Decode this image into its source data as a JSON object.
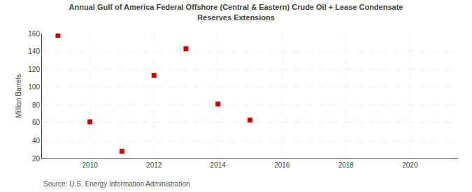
{
  "chart_data": {
    "type": "scatter",
    "title": "Annual Gulf of America Federal Offshore (Central & Eastern) Crude Oil + Lease Condensate\nReserves Extensions",
    "ylabel": "Million Barrels",
    "annotations": [
      "Source: U.S. Energy Information Administration"
    ],
    "x": [
      2009,
      2010,
      2011,
      2012,
      2013,
      2014,
      2015
    ],
    "values": [
      158,
      61,
      28,
      113,
      143,
      81,
      63
    ],
    "color": "#cc0000",
    "marker": "square",
    "xlim": [
      2008.5,
      2021.5
    ],
    "ylim": [
      20,
      160
    ],
    "xticks": [
      2010,
      2012,
      2014,
      2016,
      2018,
      2020
    ],
    "yticks": [
      20,
      40,
      60,
      80,
      100,
      120,
      140,
      160
    ],
    "grid": true
  }
}
